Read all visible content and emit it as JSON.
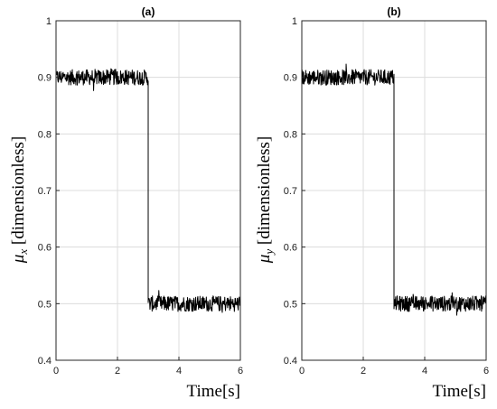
{
  "chart_data": [
    {
      "type": "line",
      "title": "(a)",
      "xlabel": "Time[s]",
      "ylabel_var": "μ",
      "ylabel_sub": "x",
      "ylabel_rest": " [dimensionless]",
      "xlim": [
        0,
        6
      ],
      "ylim": [
        0.4,
        1.0
      ],
      "xticks": [
        0,
        2,
        4,
        6
      ],
      "yticks": [
        0.4,
        0.5,
        0.6,
        0.7,
        0.8,
        0.9,
        1.0
      ],
      "xtick_labels": [
        "0",
        "2",
        "4",
        "6"
      ],
      "ytick_labels": [
        "0.4",
        "0.5",
        "0.6",
        "0.7",
        "0.8",
        "0.9",
        "1"
      ],
      "grid": true,
      "series": [
        {
          "color": "#000000",
          "segments": [
            {
              "x_start": 0,
              "x_end": 3,
              "mean": 0.9,
              "noise_range": [
                0.88,
                0.93
              ]
            },
            {
              "x_start": 3,
              "x_end": 6,
              "mean": 0.5,
              "noise_range": [
                0.475,
                0.525
              ]
            }
          ]
        }
      ]
    },
    {
      "type": "line",
      "title": "(b)",
      "xlabel": "Time[s]",
      "ylabel_var": "μ",
      "ylabel_sub": "y",
      "ylabel_rest": " [dimensionless]",
      "xlim": [
        0,
        6
      ],
      "ylim": [
        0.4,
        1.0
      ],
      "xticks": [
        0,
        2,
        4,
        6
      ],
      "yticks": [
        0.4,
        0.5,
        0.6,
        0.7,
        0.8,
        0.9,
        1.0
      ],
      "xtick_labels": [
        "0",
        "2",
        "4",
        "6"
      ],
      "ytick_labels": [
        "0.4",
        "0.5",
        "0.6",
        "0.7",
        "0.8",
        "0.9",
        "1"
      ],
      "grid": true,
      "series": [
        {
          "color": "#000000",
          "segments": [
            {
              "x_start": 0,
              "x_end": 3,
              "mean": 0.9,
              "noise_range": [
                0.88,
                0.93
              ]
            },
            {
              "x_start": 3,
              "x_end": 6,
              "mean": 0.5,
              "noise_range": [
                0.475,
                0.525
              ]
            }
          ]
        }
      ]
    }
  ]
}
